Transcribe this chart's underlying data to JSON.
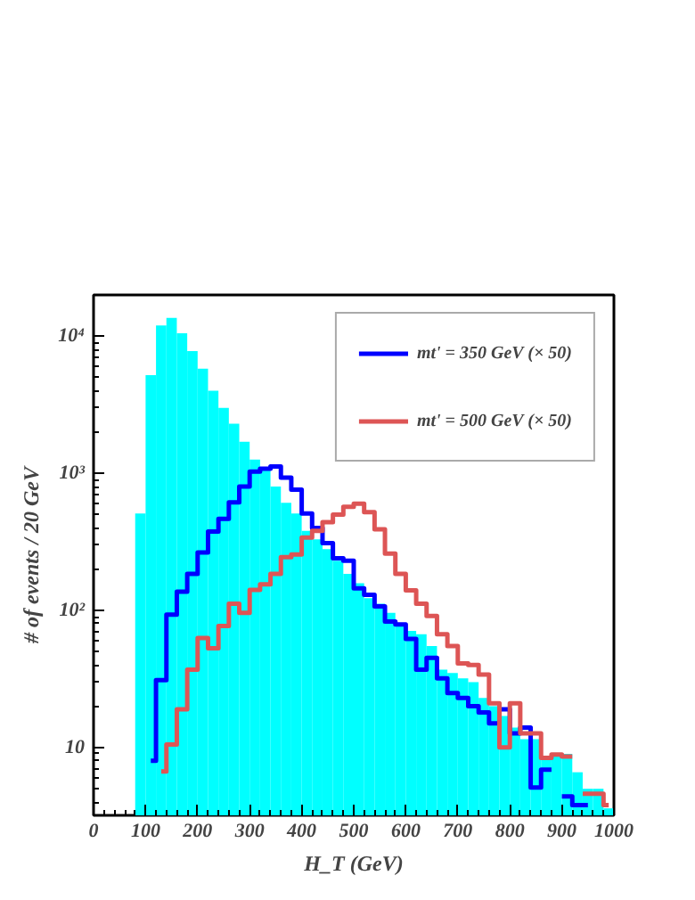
{
  "chart_data": {
    "type": "histogram",
    "xlabel": "H_T (GeV)",
    "ylabel": "# of events / 20 GeV",
    "bins": [
      0,
      20,
      40,
      60,
      80,
      100,
      120,
      140,
      160,
      180,
      200,
      220,
      240,
      260,
      280,
      300,
      320,
      340,
      360,
      380,
      400,
      420,
      440,
      460,
      480,
      500,
      520,
      540,
      560,
      580,
      600,
      620,
      640,
      660,
      680,
      700,
      720,
      740,
      760,
      780,
      800,
      820,
      840,
      860,
      880,
      900,
      920,
      940,
      960,
      980,
      1000
    ],
    "series": [
      {
        "color": "#00ffff",
        "values": [
          null,
          null,
          null,
          null,
          510,
          5200,
          12000,
          13600,
          10500,
          7800,
          5800,
          4000,
          3000,
          2300,
          1700,
          1260,
          1080,
          800,
          610,
          510,
          380,
          330,
          280,
          230,
          185,
          158,
          123,
          112,
          96,
          79,
          71,
          67,
          55,
          37,
          35,
          32,
          30,
          23,
          20,
          17,
          14,
          11.5,
          11.5,
          8.6,
          9,
          9,
          6.6,
          5,
          5,
          3.6
        ]
      },
      {
        "type": "step",
        "name": "mt' = 350 GeV (× 50)",
        "x": [
          110,
          130,
          150,
          170,
          190,
          210,
          230,
          250,
          270,
          290,
          310,
          330,
          350,
          370,
          390,
          410,
          430,
          450,
          470,
          490,
          510,
          530,
          550,
          570,
          590,
          610,
          630,
          650,
          670,
          690,
          710,
          730,
          750,
          770,
          790,
          810,
          830,
          850,
          870,
          890,
          910,
          930,
          950
        ],
        "color": "#0000ff",
        "values": [
          8,
          31,
          93,
          137,
          185,
          265,
          376,
          466,
          615,
          800,
          1030,
          1080,
          1120,
          930,
          760,
          510,
          400,
          310,
          240,
          230,
          145,
          130,
          107,
          83,
          79,
          62,
          37,
          45,
          32,
          25,
          23,
          20,
          18,
          15,
          19,
          12.7,
          14,
          5.1,
          6.9,
          null,
          4.4,
          3.8,
          3.8
        ]
      },
      {
        "type": "step",
        "name": "mt' = 500 GeV (× 50)",
        "x": [
          130,
          150,
          170,
          190,
          210,
          230,
          250,
          270,
          290,
          310,
          330,
          350,
          370,
          390,
          410,
          430,
          450,
          470,
          490,
          510,
          530,
          550,
          570,
          590,
          610,
          630,
          650,
          670,
          690,
          710,
          730,
          750,
          770,
          790,
          810,
          830,
          850,
          870,
          890,
          910,
          930,
          950,
          970,
          990
        ],
        "color": "#dd5555",
        "values": [
          6.7,
          10.5,
          19,
          37,
          63,
          53,
          77,
          112,
          96,
          141,
          155,
          185,
          245,
          256,
          340,
          380,
          440,
          500,
          570,
          600,
          520,
          390,
          260,
          185,
          140,
          112,
          91,
          67,
          55,
          41,
          40,
          34,
          21,
          10,
          21,
          12.7,
          12.7,
          8.4,
          8.9,
          8.6,
          null,
          4.6,
          4.6,
          3.8
        ]
      }
    ],
    "xlim": [
      0,
      1000
    ],
    "xticks": [
      0,
      100,
      200,
      300,
      400,
      500,
      600,
      700,
      800,
      900,
      1000
    ],
    "ylim": [
      3.2,
      20000
    ],
    "yticks": [
      10,
      {
        "value": 100,
        "label": "10²"
      },
      {
        "value": 1000,
        "label": "10³"
      },
      {
        "value": 10000,
        "label": "10⁴"
      }
    ],
    "log": "y",
    "grid": false,
    "legend": "top right"
  }
}
